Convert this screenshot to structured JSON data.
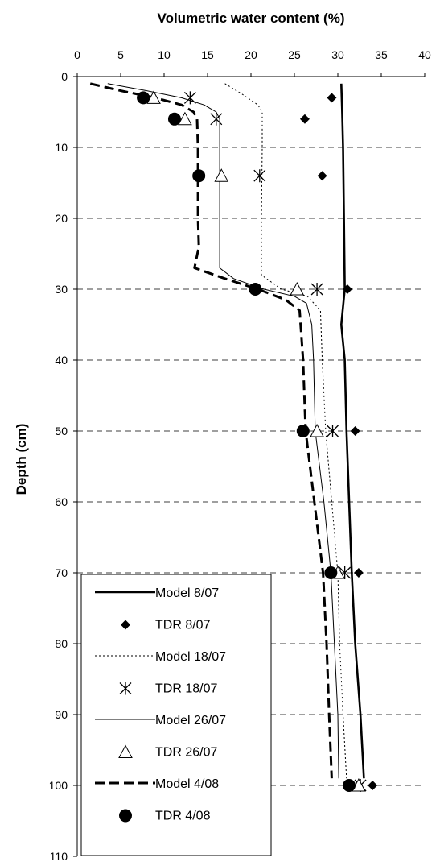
{
  "chart_data": {
    "type": "line",
    "xlabel": "Volumetric water content (%)",
    "ylabel": "Depth (cm)",
    "xlim": [
      0,
      40
    ],
    "ylim": [
      0,
      110
    ],
    "xticks": [
      0,
      5,
      10,
      15,
      20,
      25,
      30,
      35,
      40
    ],
    "yticks": [
      0,
      10,
      20,
      30,
      40,
      50,
      60,
      70,
      80,
      90,
      100,
      110
    ],
    "y_axis_inverted": true,
    "x_axis_position": "top",
    "grid": "horizontal dashed",
    "legend_position": "bottom-left",
    "series": [
      {
        "name": "Model 8/07",
        "kind": "line",
        "style": "solid-thick",
        "points": [
          [
            30.4,
            1
          ],
          [
            30.5,
            5
          ],
          [
            30.6,
            10
          ],
          [
            30.7,
            20
          ],
          [
            30.8,
            30
          ],
          [
            30.4,
            35
          ],
          [
            30.8,
            40
          ],
          [
            31.0,
            50
          ],
          [
            31.6,
            70
          ],
          [
            32.0,
            80
          ],
          [
            32.6,
            90
          ],
          [
            33.0,
            99
          ]
        ]
      },
      {
        "name": "TDR 8/07",
        "kind": "marker",
        "marker": "diamond",
        "points": [
          [
            29.3,
            3
          ],
          [
            26.2,
            6
          ],
          [
            28.2,
            14
          ],
          [
            31.1,
            30
          ],
          [
            32.0,
            50
          ],
          [
            32.4,
            70
          ],
          [
            34.0,
            100
          ]
        ]
      },
      {
        "name": "Model 18/07",
        "kind": "line",
        "style": "dotted",
        "points": [
          [
            17.0,
            1
          ],
          [
            19.0,
            2.5
          ],
          [
            20.8,
            4
          ],
          [
            21.3,
            5
          ],
          [
            21.3,
            10
          ],
          [
            21.2,
            20
          ],
          [
            21.2,
            28
          ],
          [
            23.5,
            30
          ],
          [
            26.5,
            31
          ],
          [
            28.0,
            33
          ],
          [
            28.2,
            40
          ],
          [
            28.6,
            50
          ],
          [
            29.3,
            60
          ],
          [
            30.0,
            70
          ],
          [
            30.2,
            80
          ],
          [
            30.6,
            90
          ],
          [
            31.0,
            99
          ]
        ]
      },
      {
        "name": "TDR 18/07",
        "kind": "marker",
        "marker": "asterisk",
        "points": [
          [
            13.0,
            3
          ],
          [
            16.0,
            6
          ],
          [
            21.0,
            14
          ],
          [
            27.6,
            30
          ],
          [
            29.4,
            50
          ],
          [
            30.8,
            70
          ],
          [
            32.6,
            100
          ]
        ]
      },
      {
        "name": "Model 26/07",
        "kind": "line",
        "style": "solid-thin",
        "points": [
          [
            3.5,
            1
          ],
          [
            8.0,
            2
          ],
          [
            12.0,
            3
          ],
          [
            14.6,
            4
          ],
          [
            16.0,
            5
          ],
          [
            16.4,
            6
          ],
          [
            16.4,
            20
          ],
          [
            16.4,
            27
          ],
          [
            18.0,
            28.5
          ],
          [
            21.5,
            30
          ],
          [
            25.0,
            31
          ],
          [
            26.4,
            32
          ],
          [
            27.0,
            35
          ],
          [
            27.2,
            40
          ],
          [
            27.4,
            50
          ],
          [
            28.4,
            60
          ],
          [
            29.2,
            70
          ],
          [
            29.6,
            80
          ],
          [
            30.0,
            90
          ],
          [
            30.1,
            99
          ]
        ]
      },
      {
        "name": "TDR 26/07",
        "kind": "marker",
        "marker": "triangle",
        "points": [
          [
            8.8,
            3
          ],
          [
            12.4,
            6
          ],
          [
            16.6,
            14
          ],
          [
            25.3,
            30
          ],
          [
            27.6,
            50
          ],
          [
            30.0,
            70
          ],
          [
            32.4,
            100
          ]
        ]
      },
      {
        "name": "Model 4/08",
        "kind": "line",
        "style": "dashed-thick",
        "points": [
          [
            1.5,
            1
          ],
          [
            5.0,
            2
          ],
          [
            9.0,
            3
          ],
          [
            12.0,
            4
          ],
          [
            13.4,
            5
          ],
          [
            13.8,
            6
          ],
          [
            13.9,
            10
          ],
          [
            13.9,
            20
          ],
          [
            14.0,
            24
          ],
          [
            13.5,
            27
          ],
          [
            17.0,
            28.5
          ],
          [
            20.8,
            30
          ],
          [
            24.0,
            31.5
          ],
          [
            25.6,
            33
          ],
          [
            26.0,
            40
          ],
          [
            26.3,
            50
          ],
          [
            27.3,
            60
          ],
          [
            28.3,
            70
          ],
          [
            28.7,
            80
          ],
          [
            29.0,
            90
          ],
          [
            29.3,
            99
          ]
        ]
      },
      {
        "name": "TDR 4/08",
        "kind": "marker",
        "marker": "circle",
        "points": [
          [
            7.6,
            3
          ],
          [
            11.2,
            6
          ],
          [
            14.0,
            14
          ],
          [
            20.5,
            30
          ],
          [
            26.0,
            50
          ],
          [
            29.2,
            70
          ],
          [
            31.3,
            100
          ]
        ]
      }
    ]
  }
}
